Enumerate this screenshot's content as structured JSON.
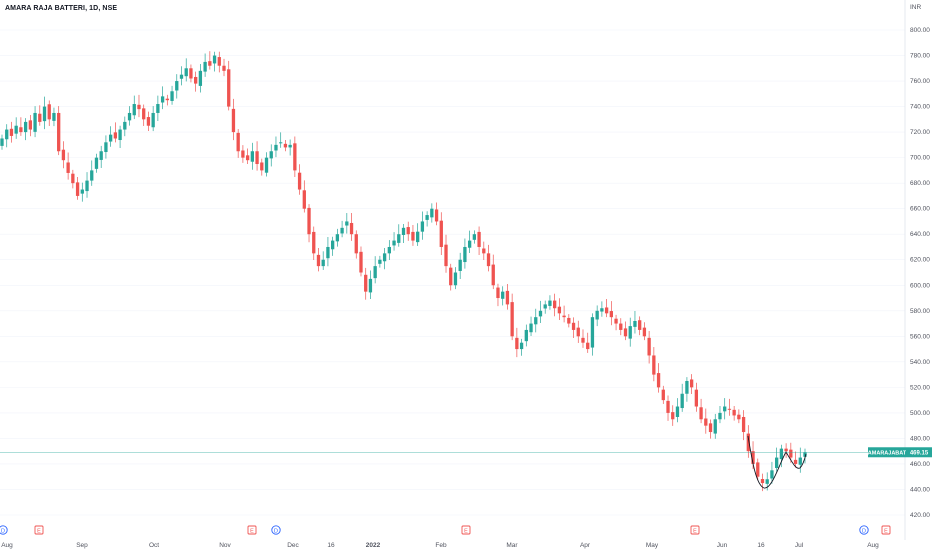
{
  "header": {
    "title": "AMARA RAJA BATTERI, 1D, NSE",
    "currency": "INR"
  },
  "price_tag": {
    "symbol": "AMARAJABAT",
    "price": "469.15"
  },
  "colors": {
    "up": "#26a69a",
    "down": "#ef5350",
    "price_line": "#26a69a",
    "axis_text": "#50535e",
    "pattern": "#131722",
    "dividend": "#2962ff",
    "earnings": "#ef5350"
  },
  "chart_data": {
    "type": "candlestick",
    "title": "AMARA RAJA BATTERI, 1D, NSE",
    "y_ticks": [
      "800.00",
      "780.00",
      "760.00",
      "740.00",
      "720.00",
      "700.00",
      "680.00",
      "660.00",
      "640.00",
      "620.00",
      "600.00",
      "580.00",
      "560.00",
      "540.00",
      "520.00",
      "500.00",
      "480.00",
      "460.00",
      "440.00",
      "420.00"
    ],
    "ylim": [
      410,
      815
    ],
    "x_ticks": [
      "Aug",
      "Sep",
      "Oct",
      "Nov",
      "Dec",
      "16",
      "2022",
      "Feb",
      "Mar",
      "Apr",
      "May",
      "Jun",
      "16",
      "Jul",
      "Aug"
    ],
    "last_price": 469.15,
    "closes": [
      715,
      722,
      717,
      725,
      720,
      728,
      722,
      735,
      728,
      740,
      730,
      735,
      705,
      698,
      688,
      680,
      670,
      675,
      682,
      690,
      700,
      705,
      712,
      718,
      715,
      722,
      728,
      735,
      742,
      738,
      730,
      725,
      735,
      742,
      748,
      745,
      752,
      760,
      765,
      770,
      762,
      758,
      768,
      775,
      772,
      780,
      772,
      768,
      740,
      720,
      705,
      700,
      698,
      705,
      695,
      690,
      700,
      705,
      710,
      712,
      708,
      710,
      690,
      675,
      660,
      640,
      625,
      615,
      620,
      630,
      635,
      640,
      645,
      650,
      640,
      625,
      610,
      595,
      605,
      615,
      620,
      625,
      630,
      635,
      640,
      645,
      640,
      635,
      642,
      650,
      655,
      660,
      650,
      630,
      615,
      600,
      610,
      620,
      630,
      635,
      640,
      630,
      625,
      615,
      600,
      590,
      595,
      585,
      560,
      550,
      555,
      565,
      570,
      575,
      580,
      585,
      588,
      582,
      578,
      575,
      570,
      565,
      560,
      555,
      550,
      575,
      580,
      582,
      578,
      575,
      570,
      565,
      560,
      568,
      572,
      565,
      560,
      545,
      530,
      520,
      510,
      500,
      495,
      505,
      515,
      525,
      520,
      505,
      495,
      490,
      485,
      495,
      500,
      505,
      503,
      498,
      495,
      485,
      470,
      460,
      450,
      445,
      448,
      455,
      465,
      472,
      470,
      465,
      460,
      465,
      469
    ]
  },
  "markers": [
    {
      "type": "dividend",
      "label": "D"
    },
    {
      "type": "earnings",
      "label": "E"
    },
    {
      "type": "earnings",
      "label": "E"
    },
    {
      "type": "dividend",
      "label": "D"
    },
    {
      "type": "earnings",
      "label": "E"
    },
    {
      "type": "earnings",
      "label": "E"
    },
    {
      "type": "dividend",
      "label": "D"
    },
    {
      "type": "earnings",
      "label": "E"
    }
  ]
}
